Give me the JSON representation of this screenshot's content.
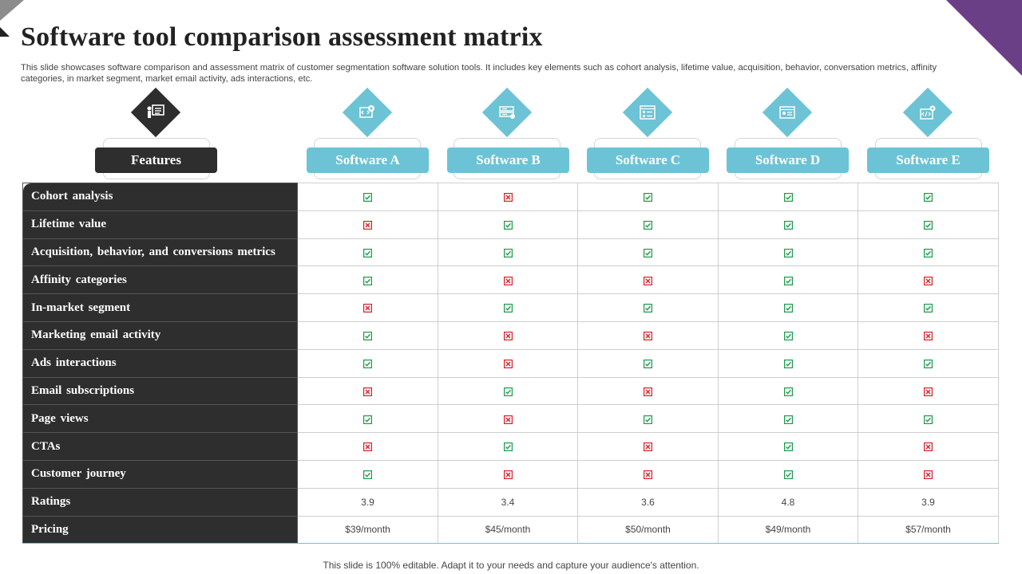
{
  "slide": {
    "title": "Software tool comparison assessment matrix",
    "description": "This slide showcases software comparison and assessment matrix of customer segmentation software solution tools. It includes key elements such as cohort analysis, lifetime value, acquisition, behavior, conversation metrics, affinity categories, in market segment, market email activity, ads interactions, etc.",
    "footer": "This slide is 100% editable. Adapt it to your needs and capture your audience's attention."
  },
  "colors": {
    "dark": "#2e2e2e",
    "teal": "#6cc3d5",
    "check": "#1a9a4a",
    "cross": "#d42027",
    "accent": "#6b3f86"
  },
  "header": {
    "features_label": "Features",
    "features_icon": "presentation-board-icon",
    "software": [
      {
        "label": "Software A",
        "icon": "gear-code-icon"
      },
      {
        "label": "Software B",
        "icon": "server-settings-icon"
      },
      {
        "label": "Software C",
        "icon": "checklist-window-icon"
      },
      {
        "label": "Software D",
        "icon": "browser-window-icon"
      },
      {
        "label": "Software E",
        "icon": "code-settings-icon"
      }
    ]
  },
  "rows": [
    {
      "feature": "Cohort analysis",
      "marks": [
        "check",
        "cross",
        "check",
        "check",
        "check"
      ]
    },
    {
      "feature": "Lifetime value",
      "marks": [
        "cross",
        "check",
        "check",
        "check",
        "check"
      ]
    },
    {
      "feature": "Acquisition, behavior, and conversions metrics",
      "marks": [
        "check",
        "check",
        "check",
        "check",
        "check"
      ]
    },
    {
      "feature": "Affinity categories",
      "marks": [
        "check",
        "cross",
        "cross",
        "check",
        "cross"
      ]
    },
    {
      "feature": "In-market segment",
      "marks": [
        "cross",
        "check",
        "check",
        "check",
        "check"
      ]
    },
    {
      "feature": "Marketing email activity",
      "marks": [
        "check",
        "cross",
        "cross",
        "check",
        "cross"
      ]
    },
    {
      "feature": "Ads interactions",
      "marks": [
        "check",
        "cross",
        "check",
        "check",
        "check"
      ]
    },
    {
      "feature": "Email subscriptions",
      "marks": [
        "cross",
        "check",
        "cross",
        "check",
        "cross"
      ]
    },
    {
      "feature": "Page views",
      "marks": [
        "check",
        "cross",
        "check",
        "check",
        "check"
      ]
    },
    {
      "feature": "CTAs",
      "marks": [
        "cross",
        "check",
        "cross",
        "check",
        "cross"
      ]
    },
    {
      "feature": "Customer journey",
      "marks": [
        "check",
        "cross",
        "cross",
        "check",
        "cross"
      ]
    }
  ],
  "ratings": {
    "feature": "Ratings",
    "values": [
      "3.9",
      "3.4",
      "3.6",
      "4.8",
      "3.9"
    ]
  },
  "pricing": {
    "feature": "Pricing",
    "values": [
      "$39/month",
      "$45/month",
      "$50/month",
      "$49/month",
      "$57/month"
    ]
  }
}
